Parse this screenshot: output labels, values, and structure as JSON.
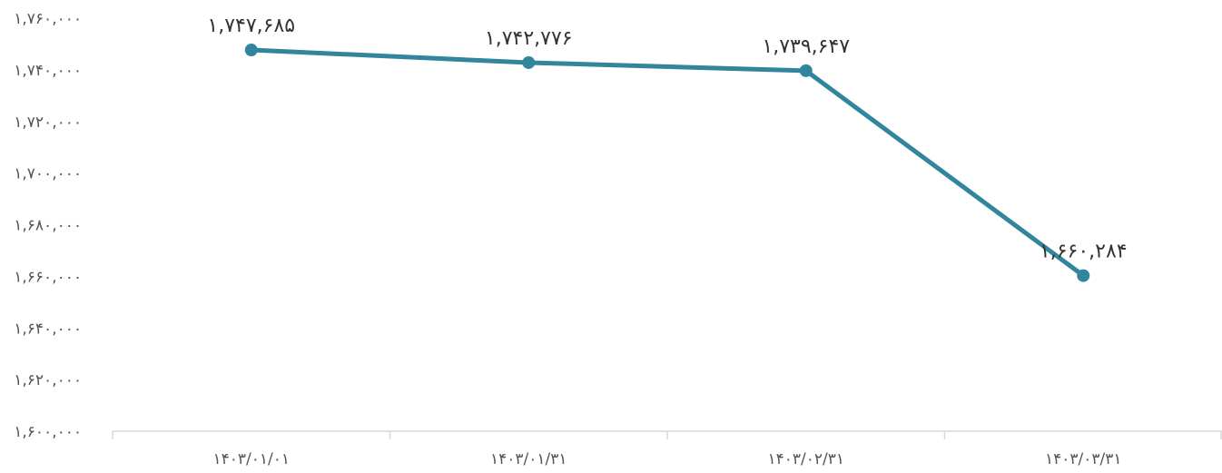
{
  "chart_data": {
    "type": "line",
    "title": "",
    "xlabel": "",
    "ylabel": "",
    "categories": [
      "۱۴۰۳/۰۱/۰۱",
      "۱۴۰۳/۰۱/۳۱",
      "۱۴۰۳/۰۲/۳۱",
      "۱۴۰۳/۰۳/۳۱"
    ],
    "series": [
      {
        "values": [
          1747685,
          1742776,
          1739647,
          1660284
        ],
        "data_labels": [
          "۱,۷۴۷,۶۸۵",
          "۱,۷۴۲,۷۷۶",
          "۱,۷۳۹,۶۴۷",
          "۱,۶۶۰,۲۸۴"
        ],
        "color": "#31859c"
      }
    ],
    "ylim": [
      1600000,
      1760000
    ],
    "y_ticks": [
      1760000,
      1740000,
      1720000,
      1700000,
      1680000,
      1660000,
      1640000,
      1620000,
      1600000
    ],
    "y_tick_labels": [
      "۱,۷۶۰,۰۰۰",
      "۱,۷۴۰,۰۰۰",
      "۱,۷۲۰,۰۰۰",
      "۱,۷۰۰,۰۰۰",
      "۱,۶۸۰,۰۰۰",
      "۱,۶۶۰,۰۰۰",
      "۱,۶۴۰,۰۰۰",
      "۱,۶۲۰,۰۰۰",
      "۱,۶۰۰,۰۰۰"
    ],
    "grid": false,
    "legend": "none",
    "axis_color": "#d9d9d9"
  }
}
